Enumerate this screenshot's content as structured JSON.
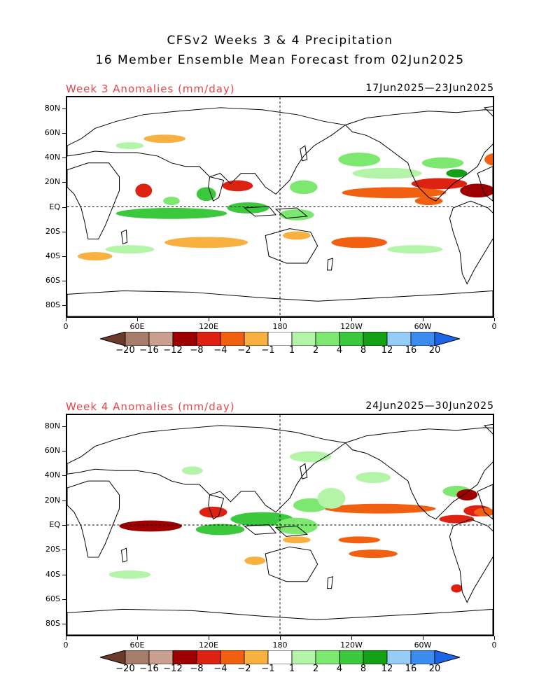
{
  "header": {
    "title_line1": "CFSv2 Weeks 3 & 4 Precipitation",
    "title_line2": "16 Member Ensemble Mean Forecast from 02Jun2025"
  },
  "panels": [
    {
      "label": "Week 3 Anomalies (mm/day)",
      "dates": "17Jun2025—23Jun2025"
    },
    {
      "label": "Week 4 Anomalies (mm/day)",
      "dates": "24Jun2025—30Jun2025"
    }
  ],
  "lat_labels_top": [
    "80N",
    "60N",
    "40N",
    "20N",
    "EQ",
    "20S",
    "40S",
    "60S",
    "80S"
  ],
  "lat_labels_bottom": [
    "80N",
    "60N",
    "40N",
    "20N",
    "EQ",
    "20S",
    "40S",
    "60S",
    "80S"
  ],
  "lon_labels": [
    "0",
    "60E",
    "120E",
    "180",
    "120W",
    "60W",
    "0"
  ],
  "colorbar": {
    "labels": [
      "−20",
      "−16",
      "−12",
      "−8",
      "−4",
      "−2",
      "−1",
      "1",
      "2",
      "4",
      "8",
      "12",
      "16",
      "20"
    ],
    "colors": [
      "#6b3a2a",
      "#a67c6a",
      "#c9a090",
      "#9e0000",
      "#dd2211",
      "#f06010",
      "#f8b040",
      "#ffffff",
      "#b4f4a8",
      "#7ce870",
      "#3cc83c",
      "#14a014",
      "#96ccf8",
      "#3c8cf0",
      "#1c64e8"
    ]
  }
}
